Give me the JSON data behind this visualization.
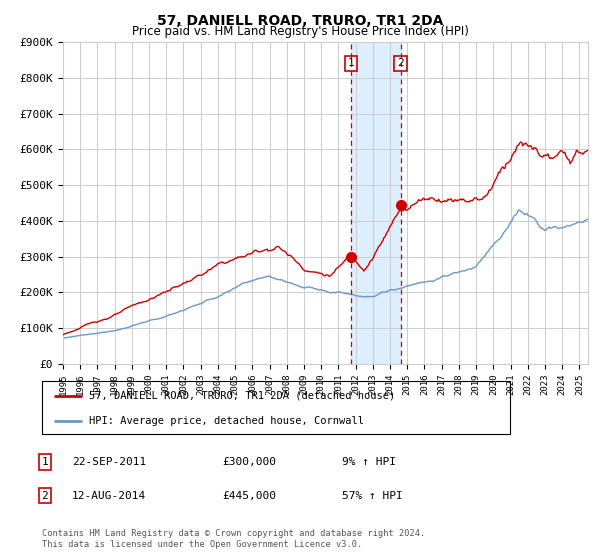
{
  "title": "57, DANIELL ROAD, TRURO, TR1 2DA",
  "subtitle": "Price paid vs. HM Land Registry's House Price Index (HPI)",
  "ylim": [
    0,
    900000
  ],
  "yticks": [
    0,
    100000,
    200000,
    300000,
    400000,
    500000,
    600000,
    700000,
    800000,
    900000
  ],
  "ytick_labels": [
    "£0",
    "£100K",
    "£200K",
    "£300K",
    "£400K",
    "£500K",
    "£600K",
    "£700K",
    "£800K",
    "£900K"
  ],
  "hpi_color": "#6699cc",
  "price_color": "#cc0000",
  "background_color": "#ffffff",
  "grid_color": "#cccccc",
  "sale1_year": 2011.72,
  "sale1_price": 300000,
  "sale2_year": 2014.61,
  "sale2_price": 445000,
  "shade_color": "#ddeeff",
  "legend_label_price": "57, DANIELL ROAD, TRURO, TR1 2DA (detached house)",
  "legend_label_hpi": "HPI: Average price, detached house, Cornwall",
  "annotation1_label": "1",
  "annotation1_date": "22-SEP-2011",
  "annotation1_price": "£300,000",
  "annotation1_hpi": "9% ↑ HPI",
  "annotation2_label": "2",
  "annotation2_date": "12-AUG-2014",
  "annotation2_price": "£445,000",
  "annotation2_hpi": "57% ↑ HPI",
  "footer": "Contains HM Land Registry data © Crown copyright and database right 2024.\nThis data is licensed under the Open Government Licence v3.0.",
  "xlim_left": 1995,
  "xlim_right": 2025.5
}
